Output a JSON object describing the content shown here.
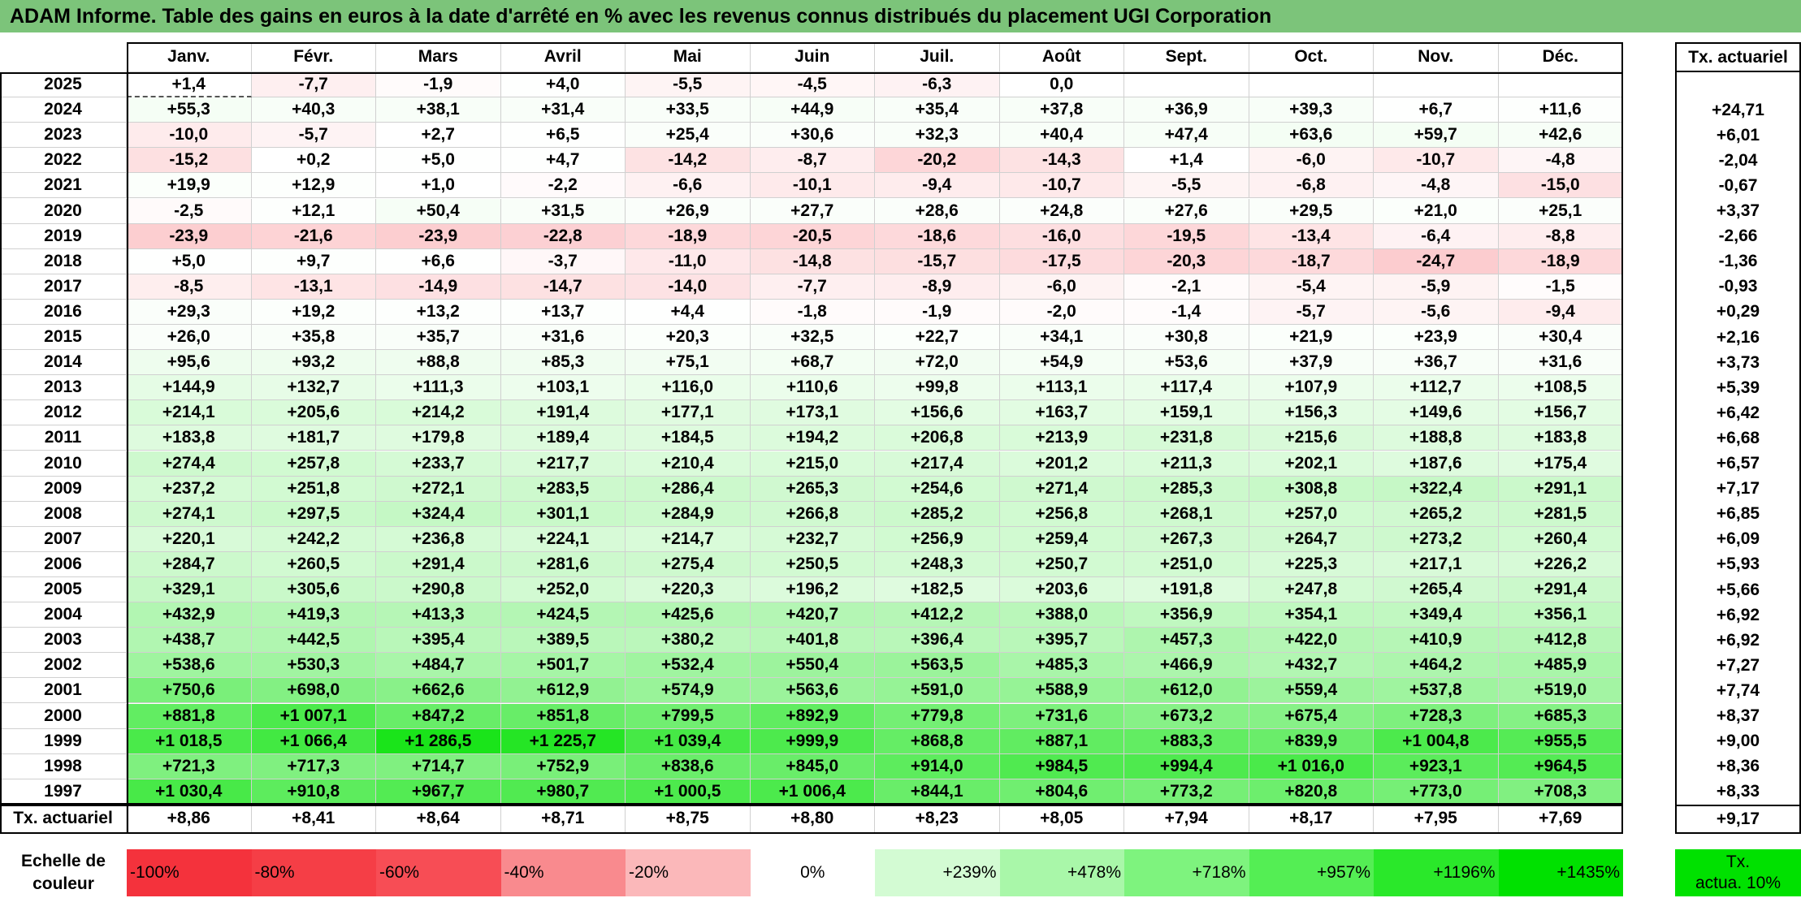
{
  "title": "ADAM Informe. Table des gains en euros à la date d'arrêté en % avec les revenus connus distribués du placement UGI Corporation",
  "months": [
    "Janv.",
    "Févr.",
    "Mars",
    "Avril",
    "Mai",
    "Juin",
    "Juil.",
    "Août",
    "Sept.",
    "Oct.",
    "Nov.",
    "Déc."
  ],
  "tx_header": "Tx. actuariel",
  "rows": [
    {
      "year": "2025",
      "values": [
        1.4,
        -7.7,
        -1.9,
        4.0,
        -5.5,
        -4.5,
        -6.3,
        0.0,
        null,
        null,
        null,
        null
      ],
      "labels": [
        "+1,4",
        "-7,7",
        "-1,9",
        "+4,0",
        "-5,5",
        "-4,5",
        "-6,3",
        "0,0",
        "",
        "",
        "",
        ""
      ],
      "tx": ""
    },
    {
      "year": "2024",
      "values": [
        55.3,
        40.3,
        38.1,
        31.4,
        33.5,
        44.9,
        35.4,
        37.8,
        36.9,
        39.3,
        6.7,
        11.6
      ],
      "labels": [
        "+55,3",
        "+40,3",
        "+38,1",
        "+31,4",
        "+33,5",
        "+44,9",
        "+35,4",
        "+37,8",
        "+36,9",
        "+39,3",
        "+6,7",
        "+11,6"
      ],
      "tx": "+24,71"
    },
    {
      "year": "2023",
      "values": [
        -10.0,
        -5.7,
        2.7,
        6.5,
        25.4,
        30.6,
        32.3,
        40.4,
        47.4,
        63.6,
        59.7,
        42.6
      ],
      "labels": [
        "-10,0",
        "-5,7",
        "+2,7",
        "+6,5",
        "+25,4",
        "+30,6",
        "+32,3",
        "+40,4",
        "+47,4",
        "+63,6",
        "+59,7",
        "+42,6"
      ],
      "tx": "+6,01"
    },
    {
      "year": "2022",
      "values": [
        -15.2,
        0.2,
        5.0,
        4.7,
        -14.2,
        -8.7,
        -20.2,
        -14.3,
        1.4,
        -6.0,
        -10.7,
        -4.8
      ],
      "labels": [
        "-15,2",
        "+0,2",
        "+5,0",
        "+4,7",
        "-14,2",
        "-8,7",
        "-20,2",
        "-14,3",
        "+1,4",
        "-6,0",
        "-10,7",
        "-4,8"
      ],
      "tx": "-2,04"
    },
    {
      "year": "2021",
      "values": [
        19.9,
        12.9,
        1.0,
        -2.2,
        -6.6,
        -10.1,
        -9.4,
        -10.7,
        -5.5,
        -6.8,
        -4.8,
        -15.0
      ],
      "labels": [
        "+19,9",
        "+12,9",
        "+1,0",
        "-2,2",
        "-6,6",
        "-10,1",
        "-9,4",
        "-10,7",
        "-5,5",
        "-6,8",
        "-4,8",
        "-15,0"
      ],
      "tx": "-0,67"
    },
    {
      "year": "2020",
      "values": [
        -2.5,
        12.1,
        50.4,
        31.5,
        26.9,
        27.7,
        28.6,
        24.8,
        27.6,
        29.5,
        21.0,
        25.1
      ],
      "labels": [
        "-2,5",
        "+12,1",
        "+50,4",
        "+31,5",
        "+26,9",
        "+27,7",
        "+28,6",
        "+24,8",
        "+27,6",
        "+29,5",
        "+21,0",
        "+25,1"
      ],
      "tx": "+3,37"
    },
    {
      "year": "2019",
      "values": [
        -23.9,
        -21.6,
        -23.9,
        -22.8,
        -18.9,
        -20.5,
        -18.6,
        -16.0,
        -19.5,
        -13.4,
        -6.4,
        -8.8
      ],
      "labels": [
        "-23,9",
        "-21,6",
        "-23,9",
        "-22,8",
        "-18,9",
        "-20,5",
        "-18,6",
        "-16,0",
        "-19,5",
        "-13,4",
        "-6,4",
        "-8,8"
      ],
      "tx": "-2,66"
    },
    {
      "year": "2018",
      "values": [
        5.0,
        9.7,
        6.6,
        -3.7,
        -11.0,
        -14.8,
        -15.7,
        -17.5,
        -20.3,
        -18.7,
        -24.7,
        -18.9
      ],
      "labels": [
        "+5,0",
        "+9,7",
        "+6,6",
        "-3,7",
        "-11,0",
        "-14,8",
        "-15,7",
        "-17,5",
        "-20,3",
        "-18,7",
        "-24,7",
        "-18,9"
      ],
      "tx": "-1,36"
    },
    {
      "year": "2017",
      "values": [
        -8.5,
        -13.1,
        -14.9,
        -14.7,
        -14.0,
        -7.7,
        -8.9,
        -6.0,
        -2.1,
        -5.4,
        -5.9,
        -1.5
      ],
      "labels": [
        "-8,5",
        "-13,1",
        "-14,9",
        "-14,7",
        "-14,0",
        "-7,7",
        "-8,9",
        "-6,0",
        "-2,1",
        "-5,4",
        "-5,9",
        "-1,5"
      ],
      "tx": "-0,93"
    },
    {
      "year": "2016",
      "values": [
        29.3,
        19.2,
        13.2,
        13.7,
        4.4,
        -1.8,
        -1.9,
        -2.0,
        -1.4,
        -5.7,
        -5.6,
        -9.4
      ],
      "labels": [
        "+29,3",
        "+19,2",
        "+13,2",
        "+13,7",
        "+4,4",
        "-1,8",
        "-1,9",
        "-2,0",
        "-1,4",
        "-5,7",
        "-5,6",
        "-9,4"
      ],
      "tx": "+0,29"
    },
    {
      "year": "2015",
      "values": [
        26.0,
        35.8,
        35.7,
        31.6,
        20.3,
        32.5,
        22.7,
        34.1,
        30.8,
        21.9,
        23.9,
        30.4
      ],
      "labels": [
        "+26,0",
        "+35,8",
        "+35,7",
        "+31,6",
        "+20,3",
        "+32,5",
        "+22,7",
        "+34,1",
        "+30,8",
        "+21,9",
        "+23,9",
        "+30,4"
      ],
      "tx": "+2,16"
    },
    {
      "year": "2014",
      "values": [
        95.6,
        93.2,
        88.8,
        85.3,
        75.1,
        68.7,
        72.0,
        54.9,
        53.6,
        37.9,
        36.7,
        31.6
      ],
      "labels": [
        "+95,6",
        "+93,2",
        "+88,8",
        "+85,3",
        "+75,1",
        "+68,7",
        "+72,0",
        "+54,9",
        "+53,6",
        "+37,9",
        "+36,7",
        "+31,6"
      ],
      "tx": "+3,73"
    },
    {
      "year": "2013",
      "values": [
        144.9,
        132.7,
        111.3,
        103.1,
        116.0,
        110.6,
        99.8,
        113.1,
        117.4,
        107.9,
        112.7,
        108.5
      ],
      "labels": [
        "+144,9",
        "+132,7",
        "+111,3",
        "+103,1",
        "+116,0",
        "+110,6",
        "+99,8",
        "+113,1",
        "+117,4",
        "+107,9",
        "+112,7",
        "+108,5"
      ],
      "tx": "+5,39"
    },
    {
      "year": "2012",
      "values": [
        214.1,
        205.6,
        214.2,
        191.4,
        177.1,
        173.1,
        156.6,
        163.7,
        159.1,
        156.3,
        149.6,
        156.7
      ],
      "labels": [
        "+214,1",
        "+205,6",
        "+214,2",
        "+191,4",
        "+177,1",
        "+173,1",
        "+156,6",
        "+163,7",
        "+159,1",
        "+156,3",
        "+149,6",
        "+156,7"
      ],
      "tx": "+6,42"
    },
    {
      "year": "2011",
      "values": [
        183.8,
        181.7,
        179.8,
        189.4,
        184.5,
        194.2,
        206.8,
        213.9,
        231.8,
        215.6,
        188.8,
        183.8
      ],
      "labels": [
        "+183,8",
        "+181,7",
        "+179,8",
        "+189,4",
        "+184,5",
        "+194,2",
        "+206,8",
        "+213,9",
        "+231,8",
        "+215,6",
        "+188,8",
        "+183,8"
      ],
      "tx": "+6,68"
    },
    {
      "year": "2010",
      "values": [
        274.4,
        257.8,
        233.7,
        217.7,
        210.4,
        215.0,
        217.4,
        201.2,
        211.3,
        202.1,
        187.6,
        175.4
      ],
      "labels": [
        "+274,4",
        "+257,8",
        "+233,7",
        "+217,7",
        "+210,4",
        "+215,0",
        "+217,4",
        "+201,2",
        "+211,3",
        "+202,1",
        "+187,6",
        "+175,4"
      ],
      "tx": "+6,57"
    },
    {
      "year": "2009",
      "values": [
        237.2,
        251.8,
        272.1,
        283.5,
        286.4,
        265.3,
        254.6,
        271.4,
        285.3,
        308.8,
        322.4,
        291.1
      ],
      "labels": [
        "+237,2",
        "+251,8",
        "+272,1",
        "+283,5",
        "+286,4",
        "+265,3",
        "+254,6",
        "+271,4",
        "+285,3",
        "+308,8",
        "+322,4",
        "+291,1"
      ],
      "tx": "+7,17"
    },
    {
      "year": "2008",
      "values": [
        274.1,
        297.5,
        324.4,
        301.1,
        284.9,
        266.8,
        285.2,
        256.8,
        268.1,
        257.0,
        265.2,
        281.5
      ],
      "labels": [
        "+274,1",
        "+297,5",
        "+324,4",
        "+301,1",
        "+284,9",
        "+266,8",
        "+285,2",
        "+256,8",
        "+268,1",
        "+257,0",
        "+265,2",
        "+281,5"
      ],
      "tx": "+6,85"
    },
    {
      "year": "2007",
      "values": [
        220.1,
        242.2,
        236.8,
        224.1,
        214.7,
        232.7,
        256.9,
        259.4,
        267.3,
        264.7,
        273.2,
        260.4
      ],
      "labels": [
        "+220,1",
        "+242,2",
        "+236,8",
        "+224,1",
        "+214,7",
        "+232,7",
        "+256,9",
        "+259,4",
        "+267,3",
        "+264,7",
        "+273,2",
        "+260,4"
      ],
      "tx": "+6,09"
    },
    {
      "year": "2006",
      "values": [
        284.7,
        260.5,
        291.4,
        281.6,
        275.4,
        250.5,
        248.3,
        250.7,
        251.0,
        225.3,
        217.1,
        226.2
      ],
      "labels": [
        "+284,7",
        "+260,5",
        "+291,4",
        "+281,6",
        "+275,4",
        "+250,5",
        "+248,3",
        "+250,7",
        "+251,0",
        "+225,3",
        "+217,1",
        "+226,2"
      ],
      "tx": "+5,93"
    },
    {
      "year": "2005",
      "values": [
        329.1,
        305.6,
        290.8,
        252.0,
        220.3,
        196.2,
        182.5,
        203.6,
        191.8,
        247.8,
        265.4,
        291.4
      ],
      "labels": [
        "+329,1",
        "+305,6",
        "+290,8",
        "+252,0",
        "+220,3",
        "+196,2",
        "+182,5",
        "+203,6",
        "+191,8",
        "+247,8",
        "+265,4",
        "+291,4"
      ],
      "tx": "+5,66"
    },
    {
      "year": "2004",
      "values": [
        432.9,
        419.3,
        413.3,
        424.5,
        425.6,
        420.7,
        412.2,
        388.0,
        356.9,
        354.1,
        349.4,
        356.1
      ],
      "labels": [
        "+432,9",
        "+419,3",
        "+413,3",
        "+424,5",
        "+425,6",
        "+420,7",
        "+412,2",
        "+388,0",
        "+356,9",
        "+354,1",
        "+349,4",
        "+356,1"
      ],
      "tx": "+6,92"
    },
    {
      "year": "2003",
      "values": [
        438.7,
        442.5,
        395.4,
        389.5,
        380.2,
        401.8,
        396.4,
        395.7,
        457.3,
        422.0,
        410.9,
        412.8
      ],
      "labels": [
        "+438,7",
        "+442,5",
        "+395,4",
        "+389,5",
        "+380,2",
        "+401,8",
        "+396,4",
        "+395,7",
        "+457,3",
        "+422,0",
        "+410,9",
        "+412,8"
      ],
      "tx": "+6,92"
    },
    {
      "year": "2002",
      "values": [
        538.6,
        530.3,
        484.7,
        501.7,
        532.4,
        550.4,
        563.5,
        485.3,
        466.9,
        432.7,
        464.2,
        485.9
      ],
      "labels": [
        "+538,6",
        "+530,3",
        "+484,7",
        "+501,7",
        "+532,4",
        "+550,4",
        "+563,5",
        "+485,3",
        "+466,9",
        "+432,7",
        "+464,2",
        "+485,9"
      ],
      "tx": "+7,27"
    },
    {
      "year": "2001",
      "values": [
        750.6,
        698.0,
        662.6,
        612.9,
        574.9,
        563.6,
        591.0,
        588.9,
        612.0,
        559.4,
        537.8,
        519.0
      ],
      "labels": [
        "+750,6",
        "+698,0",
        "+662,6",
        "+612,9",
        "+574,9",
        "+563,6",
        "+591,0",
        "+588,9",
        "+612,0",
        "+559,4",
        "+537,8",
        "+519,0"
      ],
      "tx": "+7,74"
    },
    {
      "year": "2000",
      "values": [
        881.8,
        1007.1,
        847.2,
        851.8,
        799.5,
        892.9,
        779.8,
        731.6,
        673.2,
        675.4,
        728.3,
        685.3
      ],
      "labels": [
        "+881,8",
        "+1 007,1",
        "+847,2",
        "+851,8",
        "+799,5",
        "+892,9",
        "+779,8",
        "+731,6",
        "+673,2",
        "+675,4",
        "+728,3",
        "+685,3"
      ],
      "tx": "+8,37"
    },
    {
      "year": "1999",
      "values": [
        1018.5,
        1066.4,
        1286.5,
        1225.7,
        1039.4,
        999.9,
        868.8,
        887.1,
        883.3,
        839.9,
        1004.8,
        955.5
      ],
      "labels": [
        "+1 018,5",
        "+1 066,4",
        "+1 286,5",
        "+1 225,7",
        "+1 039,4",
        "+999,9",
        "+868,8",
        "+887,1",
        "+883,3",
        "+839,9",
        "+1 004,8",
        "+955,5"
      ],
      "tx": "+9,00"
    },
    {
      "year": "1998",
      "values": [
        721.3,
        717.3,
        714.7,
        752.9,
        838.6,
        845.0,
        914.0,
        984.5,
        994.4,
        1016.0,
        923.1,
        964.5
      ],
      "labels": [
        "+721,3",
        "+717,3",
        "+714,7",
        "+752,9",
        "+838,6",
        "+845,0",
        "+914,0",
        "+984,5",
        "+994,4",
        "+1 016,0",
        "+923,1",
        "+964,5"
      ],
      "tx": "+8,36"
    },
    {
      "year": "1997",
      "values": [
        1030.4,
        910.8,
        967.7,
        980.7,
        1000.5,
        1006.4,
        844.1,
        804.6,
        773.2,
        820.8,
        773.0,
        708.3
      ],
      "labels": [
        "+1 030,4",
        "+910,8",
        "+967,7",
        "+980,7",
        "+1 000,5",
        "+1 006,4",
        "+844,1",
        "+804,6",
        "+773,2",
        "+820,8",
        "+773,0",
        "+708,3"
      ],
      "tx": "+8,33"
    }
  ],
  "footer": {
    "label": "Tx. actuariel",
    "values": [
      "+8,86",
      "+8,41",
      "+8,64",
      "+8,71",
      "+8,75",
      "+8,80",
      "+8,23",
      "+8,05",
      "+7,94",
      "+8,17",
      "+7,95",
      "+7,69"
    ],
    "tx": "+9,17"
  },
  "legend": {
    "label_line1": "Echelle de",
    "label_line2": "couleur",
    "items": [
      {
        "text": "-100%",
        "color": "#f4323c"
      },
      {
        "text": "-80%",
        "color": "#f53e46"
      },
      {
        "text": "-60%",
        "color": "#f74d55"
      },
      {
        "text": "-40%",
        "color": "#f98a8e"
      },
      {
        "text": "-20%",
        "color": "#fbb8ba"
      },
      {
        "text": "0%",
        "color": "#ffffff"
      },
      {
        "text": "+239%",
        "color": "#d3fbd3"
      },
      {
        "text": "+478%",
        "color": "#a9f7a9"
      },
      {
        "text": "+718%",
        "color": "#7ef37e"
      },
      {
        "text": "+957%",
        "color": "#54ee54"
      },
      {
        "text": "+1196%",
        "color": "#2ae82a"
      },
      {
        "text": "+1435%",
        "color": "#00e100"
      }
    ],
    "tx_line1": "Tx.",
    "tx_line2": "actua. 10%",
    "tx_color": "#00e100"
  },
  "colors": {
    "title_bg": "#7cc47a",
    "positive_max": "#00e100",
    "negative_max": "#f4323c"
  }
}
